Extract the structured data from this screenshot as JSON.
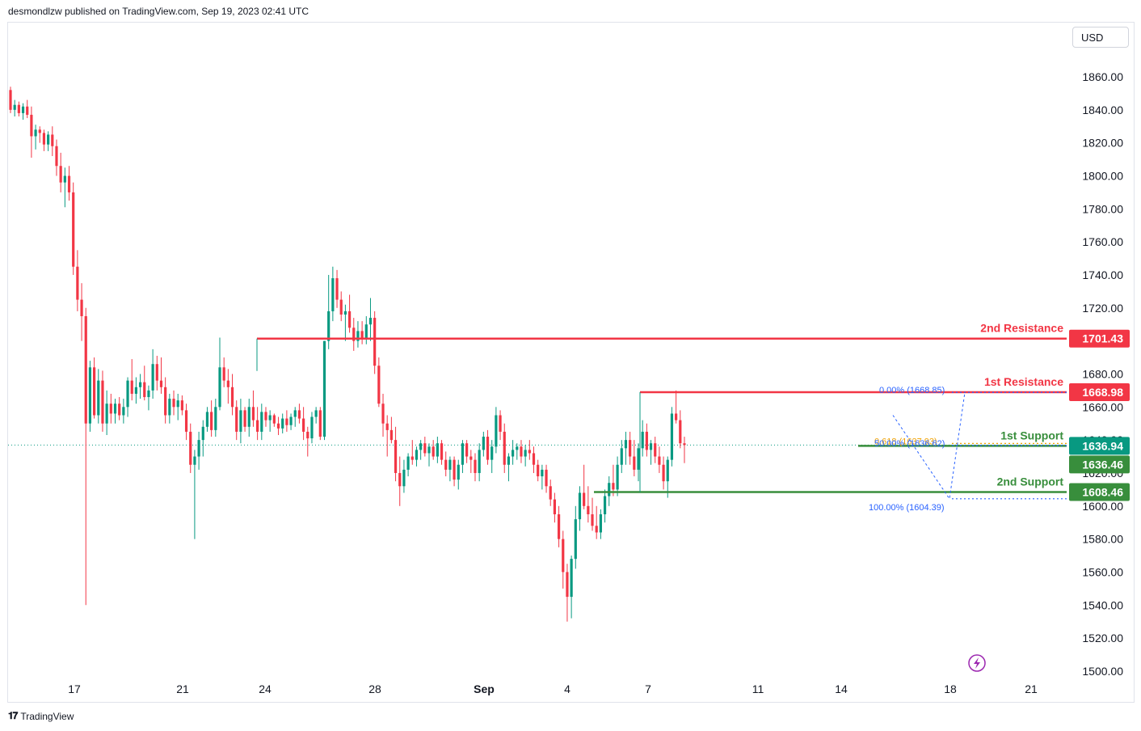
{
  "header": {
    "publisher_line": "desmondlzw published on TradingView.com, Sep 19, 2023 02:41 UTC"
  },
  "currency": {
    "label": "USD"
  },
  "footer": {
    "brand": "TradingView"
  },
  "icons": {
    "footer_logo": "tradingview-logo-icon",
    "replay": "lightning-icon"
  },
  "colors": {
    "bull": "#089981",
    "bear": "#f23645",
    "resistance": "#f23645",
    "support": "#388e3c",
    "fib_blue": "#2962ff",
    "fib_orange": "#f0a100"
  },
  "chart_data": {
    "type": "candlestick",
    "ylim": [
      1500,
      1870
    ],
    "y_ticks": [
      "1500.00",
      "1520.00",
      "1540.00",
      "1560.00",
      "1580.00",
      "1600.00",
      "1620.00",
      "1640.00",
      "1660.00",
      "1680.00",
      "1700.00",
      "1720.00",
      "1740.00",
      "1760.00",
      "1780.00",
      "1800.00",
      "1820.00",
      "1840.00",
      "1860.00"
    ],
    "x_ticks": [
      "17",
      "21",
      "24",
      "28",
      "Sep",
      "4",
      "7",
      "11",
      "14",
      "18",
      "21"
    ],
    "levels": [
      {
        "name": "2nd Resistance",
        "value": 1701.43,
        "label": "1701.43",
        "kind": "resistance"
      },
      {
        "name": "1st Resistance",
        "value": 1668.98,
        "label": "1668.98",
        "kind": "resistance"
      },
      {
        "name": "1st Support",
        "value": 1636.46,
        "label": "1636.46",
        "kind": "support"
      },
      {
        "name": "2nd Support",
        "value": 1608.46,
        "label": "1608.46",
        "kind": "support"
      }
    ],
    "last_price": {
      "value": 1636.94,
      "label": "1636.94"
    },
    "fibonacci": [
      {
        "label": "0.00% (1668.85)",
        "value": 1668.85
      },
      {
        "label": "0.618 (1637.93)",
        "value": 1637.93
      },
      {
        "label": "50.00% (1636.62)",
        "value": 1636.62
      },
      {
        "label": "100.00% (1604.39)",
        "value": 1604.39
      }
    ],
    "ohlc": [
      [
        1852,
        1854,
        1838,
        1840
      ],
      [
        1840,
        1846,
        1836,
        1843
      ],
      [
        1843,
        1845,
        1836,
        1838
      ],
      [
        1838,
        1844,
        1834,
        1842
      ],
      [
        1842,
        1846,
        1835,
        1837
      ],
      [
        1837,
        1842,
        1811,
        1824
      ],
      [
        1824,
        1831,
        1816,
        1828
      ],
      [
        1828,
        1830,
        1820,
        1826
      ],
      [
        1826,
        1828,
        1815,
        1819
      ],
      [
        1819,
        1827,
        1815,
        1825
      ],
      [
        1825,
        1830,
        1812,
        1818
      ],
      [
        1818,
        1822,
        1800,
        1806
      ],
      [
        1806,
        1814,
        1790,
        1796
      ],
      [
        1796,
        1805,
        1781,
        1800
      ],
      [
        1800,
        1806,
        1785,
        1790
      ],
      [
        1790,
        1796,
        1740,
        1745
      ],
      [
        1745,
        1755,
        1718,
        1725
      ],
      [
        1725,
        1735,
        1700,
        1715
      ],
      [
        1715,
        1720,
        1540,
        1650
      ],
      [
        1650,
        1688,
        1645,
        1684
      ],
      [
        1684,
        1690,
        1653,
        1655
      ],
      [
        1655,
        1683,
        1650,
        1676
      ],
      [
        1676,
        1682,
        1645,
        1650
      ],
      [
        1650,
        1670,
        1643,
        1662
      ],
      [
        1662,
        1668,
        1650,
        1656
      ],
      [
        1656,
        1665,
        1650,
        1662
      ],
      [
        1662,
        1666,
        1652,
        1655
      ],
      [
        1655,
        1665,
        1650,
        1660
      ],
      [
        1660,
        1678,
        1654,
        1676
      ],
      [
        1676,
        1689,
        1664,
        1668
      ],
      [
        1668,
        1678,
        1662,
        1672
      ],
      [
        1672,
        1680,
        1665,
        1675
      ],
      [
        1675,
        1685,
        1664,
        1666
      ],
      [
        1666,
        1673,
        1658,
        1670
      ],
      [
        1670,
        1695,
        1665,
        1686
      ],
      [
        1686,
        1691,
        1670,
        1676
      ],
      [
        1676,
        1690,
        1668,
        1672
      ],
      [
        1672,
        1678,
        1650,
        1655
      ],
      [
        1655,
        1668,
        1650,
        1665
      ],
      [
        1665,
        1670,
        1655,
        1660
      ],
      [
        1660,
        1668,
        1652,
        1664
      ],
      [
        1664,
        1667,
        1655,
        1658
      ],
      [
        1658,
        1662,
        1640,
        1645
      ],
      [
        1645,
        1650,
        1620,
        1625
      ],
      [
        1625,
        1634,
        1580,
        1630
      ],
      [
        1630,
        1645,
        1622,
        1640
      ],
      [
        1640,
        1652,
        1630,
        1648
      ],
      [
        1648,
        1660,
        1645,
        1657
      ],
      [
        1657,
        1664,
        1642,
        1646
      ],
      [
        1646,
        1665,
        1642,
        1660
      ],
      [
        1660,
        1702,
        1658,
        1684
      ],
      [
        1684,
        1690,
        1672,
        1676
      ],
      [
        1676,
        1683,
        1662,
        1672
      ],
      [
        1672,
        1680,
        1655,
        1660
      ],
      [
        1660,
        1664,
        1640,
        1645
      ],
      [
        1645,
        1665,
        1638,
        1658
      ],
      [
        1658,
        1660,
        1645,
        1648
      ],
      [
        1648,
        1665,
        1642,
        1660
      ],
      [
        1660,
        1670,
        1648,
        1652
      ],
      [
        1652,
        1660,
        1640,
        1645
      ],
      [
        1645,
        1662,
        1640,
        1657
      ],
      [
        1657,
        1660,
        1648,
        1652
      ],
      [
        1652,
        1658,
        1645,
        1655
      ],
      [
        1655,
        1656,
        1648,
        1650
      ],
      [
        1650,
        1654,
        1643,
        1647
      ],
      [
        1647,
        1656,
        1644,
        1653
      ],
      [
        1653,
        1658,
        1645,
        1649
      ],
      [
        1649,
        1656,
        1646,
        1654
      ],
      [
        1654,
        1660,
        1648,
        1658
      ],
      [
        1658,
        1662,
        1650,
        1653
      ],
      [
        1653,
        1660,
        1640,
        1645
      ],
      [
        1645,
        1648,
        1630,
        1641
      ],
      [
        1641,
        1657,
        1638,
        1654
      ],
      [
        1654,
        1660,
        1650,
        1658
      ],
      [
        1658,
        1660,
        1640,
        1642
      ],
      [
        1642,
        1700,
        1640,
        1700
      ],
      [
        1700,
        1740,
        1695,
        1718
      ],
      [
        1718,
        1745,
        1712,
        1738
      ],
      [
        1738,
        1743,
        1720,
        1725
      ],
      [
        1725,
        1730,
        1712,
        1716
      ],
      [
        1716,
        1722,
        1700,
        1718
      ],
      [
        1718,
        1728,
        1705,
        1708
      ],
      [
        1708,
        1714,
        1694,
        1700
      ],
      [
        1700,
        1712,
        1696,
        1706
      ],
      [
        1706,
        1712,
        1698,
        1702
      ],
      [
        1702,
        1715,
        1698,
        1710
      ],
      [
        1710,
        1726,
        1700,
        1714
      ],
      [
        1714,
        1718,
        1680,
        1685
      ],
      [
        1685,
        1690,
        1660,
        1662
      ],
      [
        1662,
        1668,
        1642,
        1650
      ],
      [
        1650,
        1655,
        1630,
        1646
      ],
      [
        1646,
        1654,
        1638,
        1640
      ],
      [
        1640,
        1648,
        1615,
        1620
      ],
      [
        1620,
        1630,
        1600,
        1612
      ],
      [
        1612,
        1628,
        1608,
        1622
      ],
      [
        1622,
        1632,
        1618,
        1630
      ],
      [
        1630,
        1640,
        1625,
        1628
      ],
      [
        1628,
        1636,
        1624,
        1634
      ],
      [
        1634,
        1640,
        1628,
        1638
      ],
      [
        1638,
        1642,
        1630,
        1632
      ],
      [
        1632,
        1638,
        1624,
        1636
      ],
      [
        1636,
        1640,
        1628,
        1630
      ],
      [
        1630,
        1642,
        1626,
        1638
      ],
      [
        1638,
        1640,
        1625,
        1628
      ],
      [
        1628,
        1633,
        1618,
        1622
      ],
      [
        1622,
        1630,
        1615,
        1628
      ],
      [
        1628,
        1630,
        1612,
        1616
      ],
      [
        1616,
        1628,
        1610,
        1625
      ],
      [
        1625,
        1640,
        1620,
        1638
      ],
      [
        1638,
        1640,
        1626,
        1630
      ],
      [
        1630,
        1634,
        1620,
        1628
      ],
      [
        1628,
        1632,
        1615,
        1620
      ],
      [
        1620,
        1638,
        1615,
        1634
      ],
      [
        1634,
        1645,
        1630,
        1642
      ],
      [
        1642,
        1646,
        1625,
        1628
      ],
      [
        1628,
        1640,
        1620,
        1636
      ],
      [
        1636,
        1660,
        1632,
        1655
      ],
      [
        1655,
        1658,
        1640,
        1645
      ],
      [
        1645,
        1650,
        1620,
        1625
      ],
      [
        1625,
        1632,
        1615,
        1630
      ],
      [
        1630,
        1640,
        1625,
        1634
      ],
      [
        1634,
        1638,
        1628,
        1636
      ],
      [
        1636,
        1640,
        1626,
        1630
      ],
      [
        1630,
        1637,
        1624,
        1634
      ],
      [
        1634,
        1640,
        1628,
        1632
      ],
      [
        1632,
        1636,
        1620,
        1625
      ],
      [
        1625,
        1628,
        1615,
        1618
      ],
      [
        1618,
        1625,
        1610,
        1622
      ],
      [
        1622,
        1625,
        1608,
        1612
      ],
      [
        1612,
        1616,
        1600,
        1604
      ],
      [
        1604,
        1608,
        1590,
        1595
      ],
      [
        1595,
        1600,
        1575,
        1580
      ],
      [
        1580,
        1585,
        1550,
        1560
      ],
      [
        1560,
        1565,
        1530,
        1545
      ],
      [
        1545,
        1570,
        1532,
        1568
      ],
      [
        1568,
        1600,
        1562,
        1592
      ],
      [
        1592,
        1612,
        1585,
        1608
      ],
      [
        1608,
        1625,
        1598,
        1600
      ],
      [
        1600,
        1612,
        1590,
        1595
      ],
      [
        1595,
        1605,
        1585,
        1588
      ],
      [
        1588,
        1600,
        1580,
        1584
      ],
      [
        1584,
        1598,
        1580,
        1595
      ],
      [
        1595,
        1610,
        1590,
        1606
      ],
      [
        1606,
        1618,
        1600,
        1614
      ],
      [
        1614,
        1625,
        1606,
        1610
      ],
      [
        1610,
        1630,
        1606,
        1625
      ],
      [
        1625,
        1640,
        1620,
        1635
      ],
      [
        1635,
        1645,
        1625,
        1640
      ],
      [
        1640,
        1645,
        1625,
        1630
      ],
      [
        1630,
        1640,
        1618,
        1622
      ],
      [
        1622,
        1638,
        1615,
        1635
      ],
      [
        1635,
        1652,
        1630,
        1645
      ],
      [
        1645,
        1650,
        1630,
        1634
      ],
      [
        1634,
        1640,
        1625,
        1638
      ],
      [
        1638,
        1642,
        1626,
        1630
      ],
      [
        1630,
        1636,
        1620,
        1625
      ],
      [
        1625,
        1630,
        1610,
        1615
      ],
      [
        1615,
        1630,
        1605,
        1628
      ],
      [
        1628,
        1660,
        1624,
        1656
      ],
      [
        1656,
        1670,
        1650,
        1652
      ],
      [
        1652,
        1658,
        1635,
        1638
      ],
      [
        1638,
        1642,
        1626,
        1637
      ]
    ]
  }
}
